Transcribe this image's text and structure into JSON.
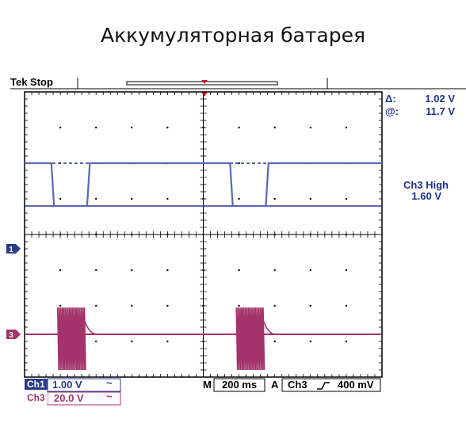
{
  "title": "Аккумуляторная батарея",
  "header": {
    "status": "Tek Stop"
  },
  "cursor_readout": {
    "delta_label": "Δ:",
    "delta_value": "1.02 V",
    "at_label": "@:",
    "at_value": "11.7 V"
  },
  "trigger_readout": {
    "label": "Ch3 High",
    "value": "1.60 V"
  },
  "channel_markers": {
    "ch1": "1",
    "ch3": "3"
  },
  "footer": {
    "ch1_label": "Ch1",
    "ch1_scale": "1.00 V",
    "ch1_coupling_icon": "~",
    "ch3_label": "Ch3",
    "ch3_scale": "20.0 V",
    "ch3_coupling_icon": "~",
    "timebase_label": "M",
    "timebase_value": "200 ms",
    "trigger_mode": "A",
    "trigger_source": "Ch3",
    "trigger_slope_icon": "rising-edge",
    "trigger_level": "400 mV"
  },
  "colors": {
    "ch1": "#5b66b8",
    "ch3": "#a3336a",
    "dashed_level": "#2a3a8c",
    "accent": "#2a3a8c"
  },
  "chart_data": [
    {
      "type": "line",
      "title": "",
      "xlabel": "",
      "ylabel": "",
      "xlim": [
        0,
        2000
      ],
      "ylim": [
        0,
        8
      ],
      "grid": true,
      "series": [
        {
          "name": "Ch1",
          "x": [
            0,
            150,
            165,
            350,
            365,
            1000,
            1150,
            1165,
            1350,
            1365,
            2000
          ],
          "y": [
            6.0,
            6.0,
            4.8,
            4.8,
            6.0,
            6.0,
            6.0,
            4.8,
            4.8,
            6.0,
            6.0
          ]
        },
        {
          "name": "Ch3",
          "x": [
            0,
            180,
            190,
            320,
            330,
            1180,
            1190,
            1320,
            1330,
            2000
          ],
          "y": [
            1.2,
            1.2,
            1.2,
            1.2,
            1.2,
            1.2,
            1.2,
            1.2,
            1.2,
            1.2
          ],
          "bursts": [
            {
              "start": 185,
              "end": 335,
              "high": 1.95,
              "low": 0.2
            },
            {
              "start": 1185,
              "end": 1335,
              "high": 1.95,
              "low": 0.2
            }
          ]
        }
      ],
      "reference_levels": [
        {
          "y": 6.0,
          "style": "dashed"
        },
        {
          "y": 4.8,
          "style": "solid"
        }
      ]
    }
  ]
}
